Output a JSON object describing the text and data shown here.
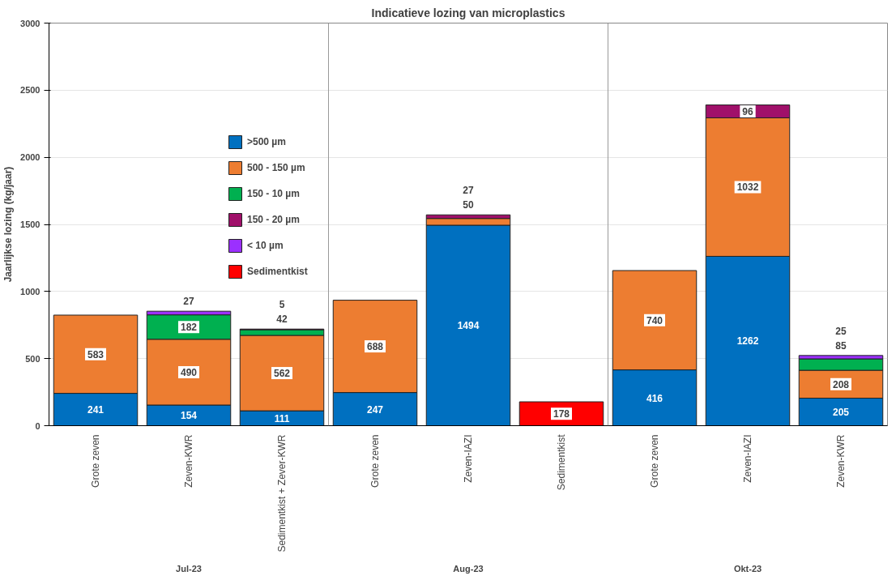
{
  "chart_data": {
    "type": "bar",
    "title": "Indicatieve lozing van microplastics",
    "ylabel": "Jaarlijkse lozing (kg/jaar)",
    "categories": [
      "Grote zeven",
      "Zeven-KWR",
      "Sedimentkist + Zever-KWR",
      "Grote zeven",
      "Zeven-IAZI",
      "Sedimentkist",
      "Grote zeven",
      "Zeven-IAZI",
      "Zeven-KWR"
    ],
    "series": [
      {
        "name": ">500 µm",
        "color": "#0070c0",
        "values": [
          241,
          154,
          111,
          247,
          1494,
          null,
          416,
          1262,
          205
        ]
      },
      {
        "name": "500 - 150 µm",
        "color": "#ed7d31",
        "values": [
          583,
          490,
          562,
          688,
          50,
          null,
          740,
          1032,
          208
        ]
      },
      {
        "name": "150 - 10 µm",
        "color": "#00b050",
        "values": [
          null,
          182,
          42,
          null,
          null,
          null,
          null,
          null,
          85
        ]
      },
      {
        "name": "150 - 20 µm",
        "color": "#a0106a",
        "values": [
          null,
          null,
          5,
          null,
          27,
          null,
          null,
          96,
          null
        ]
      },
      {
        "name": "< 10 µm",
        "color": "#9b30ff",
        "values": [
          null,
          27,
          null,
          null,
          null,
          null,
          null,
          null,
          25
        ]
      },
      {
        "name": "Sedimentkist",
        "color": "#ff0000",
        "values": [
          null,
          null,
          null,
          null,
          null,
          178,
          null,
          null,
          null
        ]
      }
    ],
    "stacked": true,
    "ylim": [
      0,
      3000
    ],
    "yticks": [
      0,
      500,
      1000,
      1500,
      2000,
      2500,
      3000
    ],
    "grid": "y",
    "legend": "top left",
    "data_labels": true,
    "annotations": [
      "Jul-23",
      "Aug-23",
      "Okt-23"
    ]
  }
}
